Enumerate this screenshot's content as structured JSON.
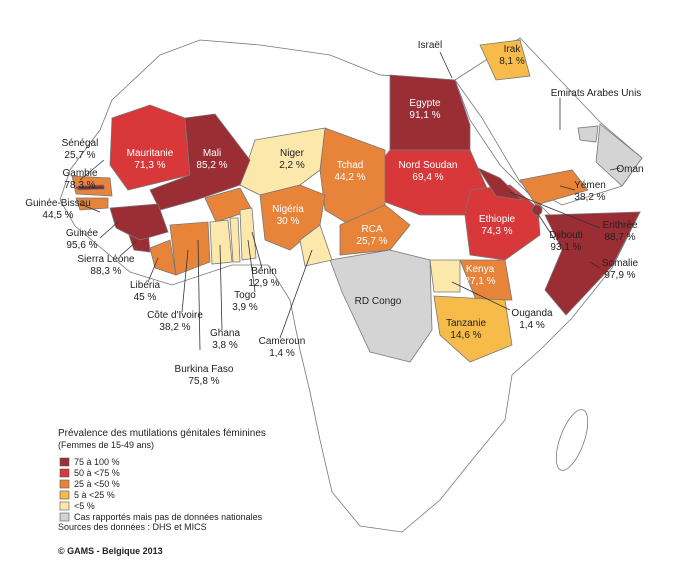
{
  "countries": [
    {
      "name": "Israël"
    },
    {
      "name": "Irak",
      "value": "8,1 %"
    },
    {
      "name": "Emirats Arabes Unis"
    },
    {
      "name": "Egypte",
      "value": "91,1 %"
    },
    {
      "name": "Oman"
    },
    {
      "name": "Yémen",
      "value": "38,2 %"
    },
    {
      "name": "Erithrée",
      "value": "88,7 %"
    },
    {
      "name": "Djibouti",
      "value": "93,1 %"
    },
    {
      "name": "Somalie",
      "value": "97,9 %"
    },
    {
      "name": "Ethiopie",
      "value": "74,3 %"
    },
    {
      "name": "Nord Soudan",
      "value": "69,4 %"
    },
    {
      "name": "Tchad",
      "value": "44,2 %"
    },
    {
      "name": "Niger",
      "value": "2,2 %"
    },
    {
      "name": "Mali",
      "value": "85,2 %"
    },
    {
      "name": "Mauritanie",
      "value": "71,3 %"
    },
    {
      "name": "Sénégal",
      "value": "25,7 %"
    },
    {
      "name": "Gambie",
      "value": "78,3 %"
    },
    {
      "name": "Guinée-Bissau",
      "value": "44,5 %"
    },
    {
      "name": "Guinée",
      "value": "95,6 %"
    },
    {
      "name": "Sierra Léone",
      "value": "88,3 %"
    },
    {
      "name": "Libéria",
      "value": "45 %"
    },
    {
      "name": "Côte d'Ivoire",
      "value": "38,2 %"
    },
    {
      "name": "Burkina Faso",
      "value": "75,8 %"
    },
    {
      "name": "Ghana",
      "value": "3,8 %"
    },
    {
      "name": "Togo",
      "value": "3,9 %"
    },
    {
      "name": "Bénin",
      "value": "12,9 %"
    },
    {
      "name": "Nigéria",
      "value": "30 %"
    },
    {
      "name": "Cameroun",
      "value": "1,4 %"
    },
    {
      "name": "RCA",
      "value": "25,7 %"
    },
    {
      "name": "RD Congo"
    },
    {
      "name": "Kenya",
      "value": "27,1 %"
    },
    {
      "name": "Ouganda",
      "value": "1,4 %"
    },
    {
      "name": "Tanzanie",
      "value": "14,6 %"
    }
  ],
  "legend": {
    "title": "Prévalence des mutilations génitales féminines",
    "subtitle": "(Femmes de 15-49 ans)",
    "items": [
      {
        "label": "75 à 100 %",
        "color": "#9b2d35"
      },
      {
        "label": "50 à <75 %",
        "color": "#d8383a"
      },
      {
        "label": "25 à <50 %",
        "color": "#e8843a"
      },
      {
        "label": "5 à <25 %",
        "color": "#f6bb48"
      },
      {
        "label": "<5 %",
        "color": "#fde8ac"
      },
      {
        "label": "Cas rapportés mais pas de données nationales",
        "color": "#d4d4d4"
      }
    ],
    "source": "Sources des données : DHS et MICS"
  },
  "footer": "© GAMS - Belgique 2013"
}
